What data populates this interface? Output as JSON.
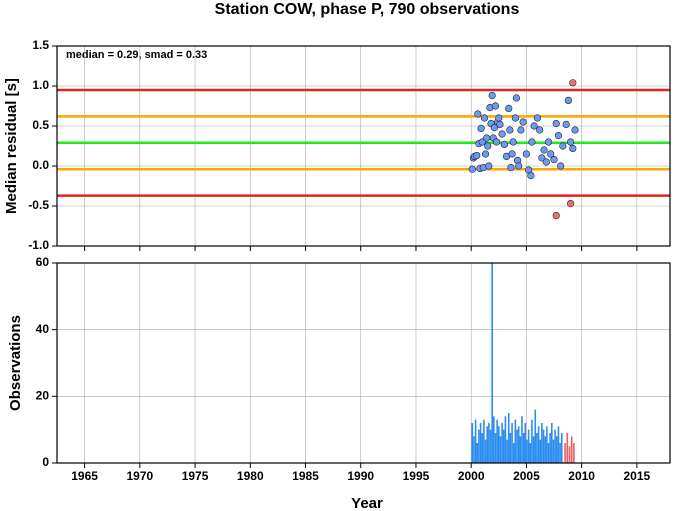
{
  "chart_data": [
    {
      "type": "scatter",
      "title": "Station COW, phase P, 790 observations",
      "annotation": "median = 0.29, smad = 0.33",
      "ylabel": "Median residual [s]",
      "xlim": [
        1962.5,
        2018
      ],
      "xticks": [
        1965,
        1970,
        1975,
        1980,
        1985,
        1990,
        1995,
        2000,
        2005,
        2010,
        2015
      ],
      "ylim": [
        -1.0,
        1.5
      ],
      "yticks": [
        {
          "value": -1.0,
          "label": "-1.0"
        },
        {
          "value": -0.5,
          "label": "-0.5"
        },
        {
          "value": 0.0,
          "label": "0.0"
        },
        {
          "value": 0.5,
          "label": "0.5"
        },
        {
          "value": 1.0,
          "label": "1.0"
        },
        1.5
      ],
      "grid": true,
      "hlines": [
        {
          "value": 0.95,
          "color": "#e8201e"
        },
        {
          "value": 0.62,
          "color": "#ffa500"
        },
        {
          "value": 0.29,
          "color": "#1ee81e"
        },
        {
          "value": -0.04,
          "color": "#ffa500"
        },
        {
          "value": -0.37,
          "color": "#e8201e"
        }
      ],
      "series": [
        {
          "color": "#6b9bf0",
          "x": [
            2000.1,
            2000.2,
            2000.3,
            2000.5,
            2000.6,
            2000.7,
            2000.8,
            2000.9,
            2001.0,
            2001.1,
            2001.2,
            2001.3,
            2001.4,
            2001.5,
            2001.6,
            2001.7,
            2001.8,
            2001.9,
            2002.0,
            2002.1,
            2002.2,
            2002.3,
            2002.4,
            2002.5,
            2002.6,
            2002.8,
            2003.0,
            2003.2,
            2003.4,
            2003.5,
            2003.6,
            2003.7,
            2003.8,
            2004.0,
            2004.1,
            2004.2,
            2004.3,
            2004.5,
            2004.7,
            2005.0,
            2005.2,
            2005.4,
            2005.5,
            2005.7,
            2006.0,
            2006.2,
            2006.4,
            2006.6,
            2006.8,
            2007.0,
            2007.2,
            2007.5,
            2007.7,
            2007.9,
            2008.1,
            2008.3,
            2008.6,
            2008.8,
            2009.0,
            2009.2,
            2009.4
          ],
          "values": [
            -0.04,
            0.1,
            0.12,
            0.13,
            0.65,
            0.28,
            -0.03,
            0.47,
            0.3,
            -0.02,
            0.6,
            0.15,
            0.35,
            0.25,
            0.0,
            0.73,
            0.53,
            0.88,
            0.35,
            0.48,
            0.75,
            0.3,
            0.55,
            0.6,
            0.52,
            0.4,
            0.27,
            0.12,
            0.72,
            0.45,
            -0.02,
            0.15,
            0.3,
            0.6,
            0.85,
            0.07,
            0.0,
            0.45,
            0.55,
            0.15,
            -0.05,
            -0.12,
            0.3,
            0.5,
            0.6,
            0.45,
            0.1,
            0.2,
            0.05,
            0.3,
            0.15,
            0.08,
            0.53,
            0.38,
            0.0,
            0.25,
            0.52,
            0.82,
            0.3,
            0.22,
            0.45
          ]
        },
        {
          "color": "#f07070",
          "x": [
            2007.7,
            2009.0,
            2009.2
          ],
          "values": [
            -0.62,
            -0.47,
            1.04
          ]
        }
      ]
    },
    {
      "type": "bar",
      "ylabel": "Observations",
      "xlabel": "Year",
      "xlim": [
        1962.5,
        2018
      ],
      "xticks": [
        1965,
        1970,
        1975,
        1980,
        1985,
        1990,
        1995,
        2000,
        2005,
        2010,
        2015
      ],
      "ylim": [
        0,
        60
      ],
      "yticks": [
        0,
        20,
        40,
        60
      ],
      "grid": true,
      "series": [
        {
          "color": "#2a8cf0",
          "x": [
            2000.1,
            2000.25,
            2000.4,
            2000.55,
            2000.7,
            2000.85,
            2001.0,
            2001.15,
            2001.3,
            2001.45,
            2001.6,
            2001.75,
            2001.9,
            2002.05,
            2002.2,
            2002.35,
            2002.5,
            2002.65,
            2002.8,
            2002.95,
            2003.1,
            2003.25,
            2003.4,
            2003.55,
            2003.7,
            2003.85,
            2004.0,
            2004.15,
            2004.3,
            2004.45,
            2004.6,
            2004.75,
            2004.9,
            2005.05,
            2005.2,
            2005.35,
            2005.5,
            2005.65,
            2005.8,
            2005.95,
            2006.1,
            2006.25,
            2006.4,
            2006.55,
            2006.7,
            2006.85,
            2007.0,
            2007.15,
            2007.3,
            2007.45,
            2007.6,
            2007.75,
            2007.9,
            2008.05,
            2008.2
          ],
          "values": [
            12,
            8,
            13,
            6,
            10,
            12,
            9,
            13,
            7,
            11,
            12,
            10,
            60,
            14,
            9,
            13,
            11,
            8,
            12,
            10,
            14,
            7,
            15,
            9,
            12,
            6,
            13,
            10,
            11,
            8,
            14,
            9,
            12,
            7,
            10,
            6,
            13,
            8,
            16,
            9,
            11,
            7,
            12,
            10,
            8,
            11,
            6,
            9,
            12,
            7,
            10,
            8,
            11,
            6,
            9
          ]
        },
        {
          "color": "#f05a5a",
          "x": [
            2008.5,
            2008.7,
            2008.9,
            2009.1,
            2009.3
          ],
          "values": [
            6,
            9,
            5,
            8,
            6
          ]
        }
      ]
    }
  ]
}
